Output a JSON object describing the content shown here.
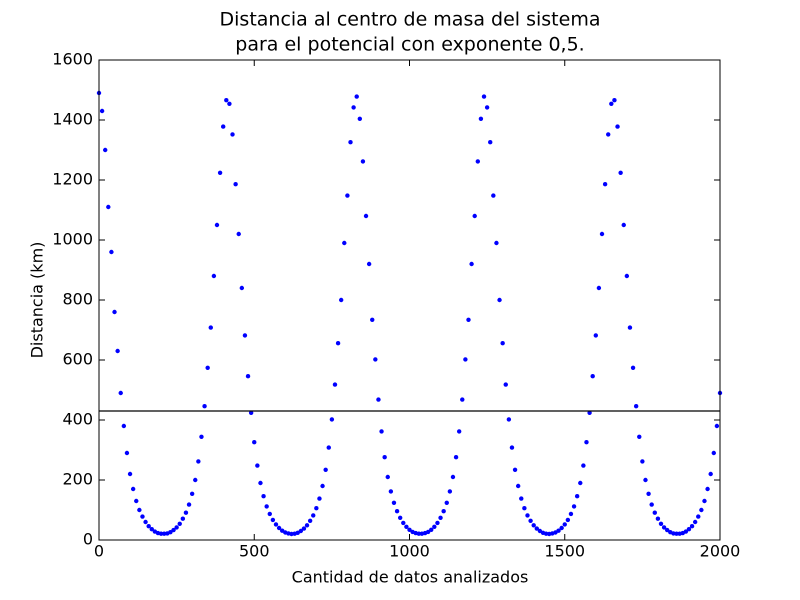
{
  "chart_data": {
    "type": "scatter",
    "title": [
      "Distancia al centro de masa del sistema",
      "para el potencial con exponente 0,5."
    ],
    "x_label": "Cantidad de datos analizados",
    "y_label": "Distancia (km)",
    "color": "#0000ff",
    "hline": 430,
    "xlim": [
      0,
      2000
    ],
    "xticks": [
      0,
      500,
      1000,
      1500,
      2000
    ],
    "ylim": [
      0,
      1600
    ],
    "yticks": [
      0,
      200,
      400,
      600,
      800,
      1000,
      1200,
      1400,
      1600
    ],
    "x": [
      0,
      10,
      20,
      30,
      40,
      50,
      60,
      70,
      80,
      90,
      100,
      110,
      120,
      130,
      140,
      150,
      160,
      170,
      180,
      190,
      200,
      210,
      220,
      230,
      240,
      250,
      260,
      270,
      280,
      290,
      300,
      310,
      320,
      330,
      340,
      350,
      360,
      370,
      380,
      390,
      400,
      410,
      420,
      430,
      440,
      450,
      460,
      470,
      480,
      490,
      500,
      510,
      520,
      530,
      540,
      550,
      560,
      570,
      580,
      590,
      600,
      610,
      620,
      630,
      640,
      650,
      660,
      670,
      680,
      690,
      700,
      710,
      720,
      730,
      740,
      750,
      760,
      770,
      780,
      790,
      800,
      810,
      820,
      830,
      840,
      850,
      860,
      870,
      880,
      890,
      900,
      910,
      920,
      930,
      940,
      950,
      960,
      970,
      980,
      990,
      1000,
      1010,
      1020,
      1030,
      1040,
      1050,
      1060,
      1070,
      1080,
      1090,
      1100,
      1110,
      1120,
      1130,
      1140,
      1150,
      1160,
      1170,
      1180,
      1190,
      1200,
      1210,
      1220,
      1230,
      1240,
      1250,
      1260,
      1270,
      1280,
      1290,
      1300,
      1310,
      1320,
      1330,
      1340,
      1350,
      1360,
      1370,
      1380,
      1390,
      1400,
      1410,
      1420,
      1430,
      1440,
      1450,
      1460,
      1470,
      1480,
      1490,
      1500,
      1510,
      1520,
      1530,
      1540,
      1550,
      1560,
      1570,
      1580,
      1590,
      1600,
      1610,
      1620,
      1630,
      1640,
      1650,
      1660,
      1670,
      1680,
      1690,
      1700,
      1710,
      1720,
      1730,
      1740,
      1750,
      1760,
      1770,
      1780,
      1790,
      1800,
      1810,
      1820,
      1830,
      1840,
      1850,
      1860,
      1870,
      1880,
      1890,
      1900,
      1910,
      1920,
      1930,
      1940,
      1950,
      1960,
      1970,
      1980,
      1990,
      2000
    ],
    "values": [
      1490,
      1430,
      1300,
      1110,
      960,
      760,
      630,
      490,
      380,
      290,
      220,
      170,
      130,
      100,
      78,
      60,
      46,
      36,
      28,
      23,
      21,
      21,
      22,
      26,
      33,
      42,
      54,
      71,
      91,
      118,
      154,
      200,
      262,
      344,
      446,
      574,
      708,
      880,
      1050,
      1224,
      1378,
      1466,
      1454,
      1352,
      1186,
      1020,
      840,
      682,
      546,
      424,
      326,
      248,
      190,
      146,
      112,
      87,
      67,
      52,
      40,
      31,
      25,
      22,
      20,
      21,
      24,
      30,
      38,
      49,
      64,
      82,
      106,
      138,
      180,
      234,
      308,
      402,
      518,
      656,
      800,
      990,
      1148,
      1326,
      1442,
      1478,
      1404,
      1262,
      1080,
      920,
      734,
      602,
      468,
      362,
      276,
      210,
      162,
      124,
      96,
      74,
      57,
      44,
      34,
      27,
      23,
      21,
      21,
      23,
      27,
      34,
      44,
      57,
      74,
      96,
      124,
      162,
      210,
      276,
      362,
      468,
      602,
      734,
      920,
      1080,
      1262,
      1404,
      1478,
      1442,
      1326,
      1148,
      990,
      800,
      656,
      518,
      402,
      308,
      234,
      180,
      138,
      106,
      82,
      64,
      49,
      38,
      30,
      24,
      21,
      20,
      22,
      25,
      31,
      40,
      52,
      67,
      87,
      112,
      146,
      190,
      248,
      326,
      424,
      546,
      682,
      840,
      1020,
      1186,
      1352,
      1454,
      1466,
      1378,
      1224,
      1050,
      880,
      708,
      574,
      446,
      344,
      262,
      200,
      154,
      118,
      91,
      71,
      54,
      42,
      33,
      26,
      22,
      21,
      21,
      23,
      28,
      36,
      46,
      60,
      78,
      100,
      130,
      170,
      220,
      290,
      380,
      490
    ]
  }
}
